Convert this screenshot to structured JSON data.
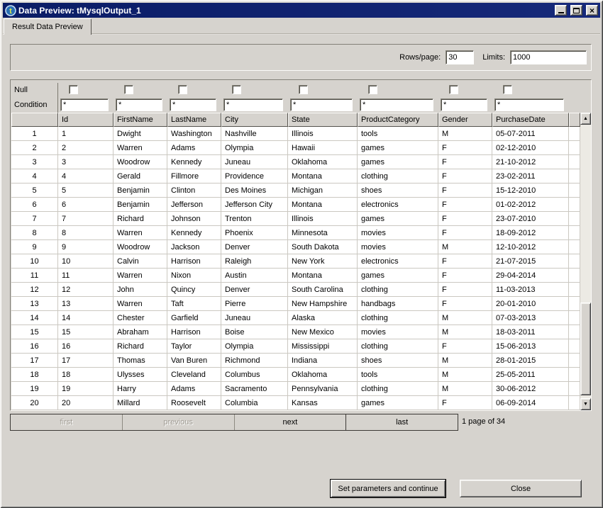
{
  "window": {
    "title": "Data Preview: tMysqlOutput_1"
  },
  "tab": {
    "label": "Result Data Preview"
  },
  "controls": {
    "rows_per_page_label": "Rows/page:",
    "rows_per_page_value": "30",
    "limits_label": "Limits:",
    "limits_value": "1000"
  },
  "filters": {
    "null_label": "Null",
    "condition_label": "Condition",
    "condition_value": "*",
    "column_count": 8
  },
  "table": {
    "headers": [
      "",
      "Id",
      "FirstName",
      "LastName",
      "City",
      "State",
      "ProductCategory",
      "Gender",
      "PurchaseDate"
    ],
    "rows": [
      [
        "1",
        "1",
        "Dwight",
        "Washington",
        "Nashville",
        "Illinois",
        "tools",
        "M",
        "05-07-2011"
      ],
      [
        "2",
        "2",
        "Warren",
        "Adams",
        "Olympia",
        "Hawaii",
        "games",
        "F",
        "02-12-2010"
      ],
      [
        "3",
        "3",
        "Woodrow",
        "Kennedy",
        "Juneau",
        "Oklahoma",
        "games",
        "F",
        "21-10-2012"
      ],
      [
        "4",
        "4",
        "Gerald",
        "Fillmore",
        "Providence",
        "Montana",
        "clothing",
        "F",
        "23-02-2011"
      ],
      [
        "5",
        "5",
        "Benjamin",
        "Clinton",
        "Des Moines",
        "Michigan",
        "shoes",
        "F",
        "15-12-2010"
      ],
      [
        "6",
        "6",
        "Benjamin",
        "Jefferson",
        "Jefferson City",
        "Montana",
        "electronics",
        "F",
        "01-02-2012"
      ],
      [
        "7",
        "7",
        "Richard",
        "Johnson",
        "Trenton",
        "Illinois",
        "games",
        "F",
        "23-07-2010"
      ],
      [
        "8",
        "8",
        "Warren",
        "Kennedy",
        "Phoenix",
        "Minnesota",
        "movies",
        "F",
        "18-09-2012"
      ],
      [
        "9",
        "9",
        "Woodrow",
        "Jackson",
        "Denver",
        "South Dakota",
        "movies",
        "M",
        "12-10-2012"
      ],
      [
        "10",
        "10",
        "Calvin",
        "Harrison",
        "Raleigh",
        "New York",
        "electronics",
        "F",
        "21-07-2015"
      ],
      [
        "11",
        "11",
        "Warren",
        "Nixon",
        "Austin",
        "Montana",
        "games",
        "F",
        "29-04-2014"
      ],
      [
        "12",
        "12",
        "John",
        "Quincy",
        "Denver",
        "South Carolina",
        "clothing",
        "F",
        "11-03-2013"
      ],
      [
        "13",
        "13",
        "Warren",
        "Taft",
        "Pierre",
        "New Hampshire",
        "handbags",
        "F",
        "20-01-2010"
      ],
      [
        "14",
        "14",
        "Chester",
        "Garfield",
        "Juneau",
        "Alaska",
        "clothing",
        "M",
        "07-03-2013"
      ],
      [
        "15",
        "15",
        "Abraham",
        "Harrison",
        "Boise",
        "New Mexico",
        "movies",
        "M",
        "18-03-2011"
      ],
      [
        "16",
        "16",
        "Richard",
        "Taylor",
        "Olympia",
        "Mississippi",
        "clothing",
        "F",
        "15-06-2013"
      ],
      [
        "17",
        "17",
        "Thomas",
        "Van Buren",
        "Richmond",
        "Indiana",
        "shoes",
        "M",
        "28-01-2015"
      ],
      [
        "18",
        "18",
        "Ulysses",
        "Cleveland",
        "Columbus",
        "Oklahoma",
        "tools",
        "M",
        "25-05-2011"
      ],
      [
        "19",
        "19",
        "Harry",
        "Adams",
        "Sacramento",
        "Pennsylvania",
        "clothing",
        "M",
        "30-06-2012"
      ],
      [
        "20",
        "20",
        "Millard",
        "Roosevelt",
        "Columbia",
        "Kansas",
        "games",
        "F",
        "06-09-2014"
      ]
    ]
  },
  "pagination": {
    "buttons": [
      {
        "label": "first",
        "enabled": false
      },
      {
        "label": "previous",
        "enabled": false
      },
      {
        "label": "next",
        "enabled": true
      },
      {
        "label": "last",
        "enabled": true
      }
    ],
    "status": "1 page of 34"
  },
  "footer": {
    "set_params_label": "Set parameters and continue",
    "close_label": "Close"
  },
  "icons": {
    "app_icon": "talend-t-icon",
    "minimize": "minimize-icon",
    "maximize": "maximize-icon",
    "close": "close-icon",
    "scroll_up": "▲",
    "scroll_down": "▼"
  },
  "colors": {
    "titlebar": "#0a1c66",
    "dialog_bg": "#d6d3ce",
    "cell_bg": "#ffffff",
    "grid_line": "#cbc8c1"
  }
}
